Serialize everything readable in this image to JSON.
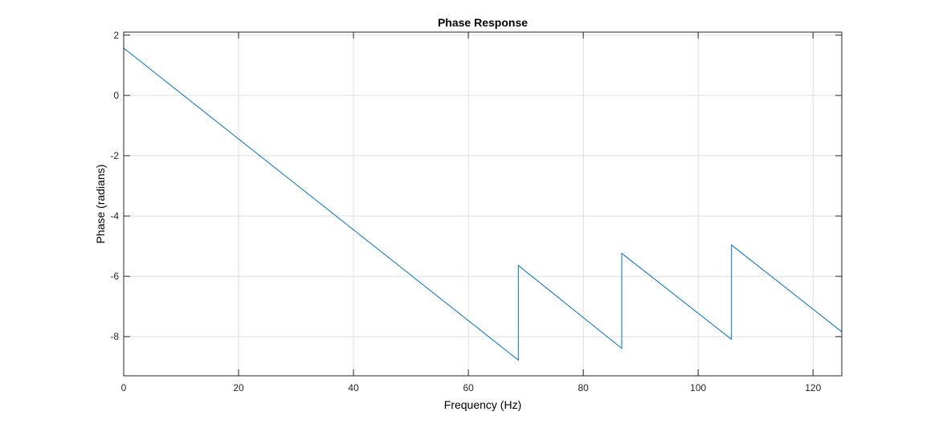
{
  "figure": {
    "background": "#ffffff"
  },
  "chart_data": {
    "type": "line",
    "title": "Phase Response",
    "xlabel": "Frequency (Hz)",
    "ylabel": "Phase (radians)",
    "xlim": [
      0,
      125
    ],
    "ylim": [
      -9.3,
      2.1
    ],
    "xticks": [
      0,
      20,
      40,
      60,
      80,
      100,
      120
    ],
    "xtick_labels": [
      "0",
      "20",
      "40",
      "60",
      "80",
      "100",
      "120"
    ],
    "yticks": [
      2,
      0,
      -2,
      -4,
      -6,
      -8
    ],
    "ytick_labels": [
      "2",
      "0",
      "-2",
      "-4",
      "-6",
      "-8"
    ],
    "grid": true,
    "box": true,
    "series": [
      {
        "color": "#0072BD",
        "x": [
          0,
          68.7,
          68.7,
          86.7,
          86.7,
          105.8,
          105.8,
          125
        ],
        "y": [
          1.57,
          -8.78,
          -5.64,
          -8.39,
          -5.24,
          -8.09,
          -4.96,
          -7.84
        ]
      }
    ],
    "colors": {
      "axes": "#262626",
      "grid": "#dfdfdf",
      "line": "#0072BD"
    }
  }
}
